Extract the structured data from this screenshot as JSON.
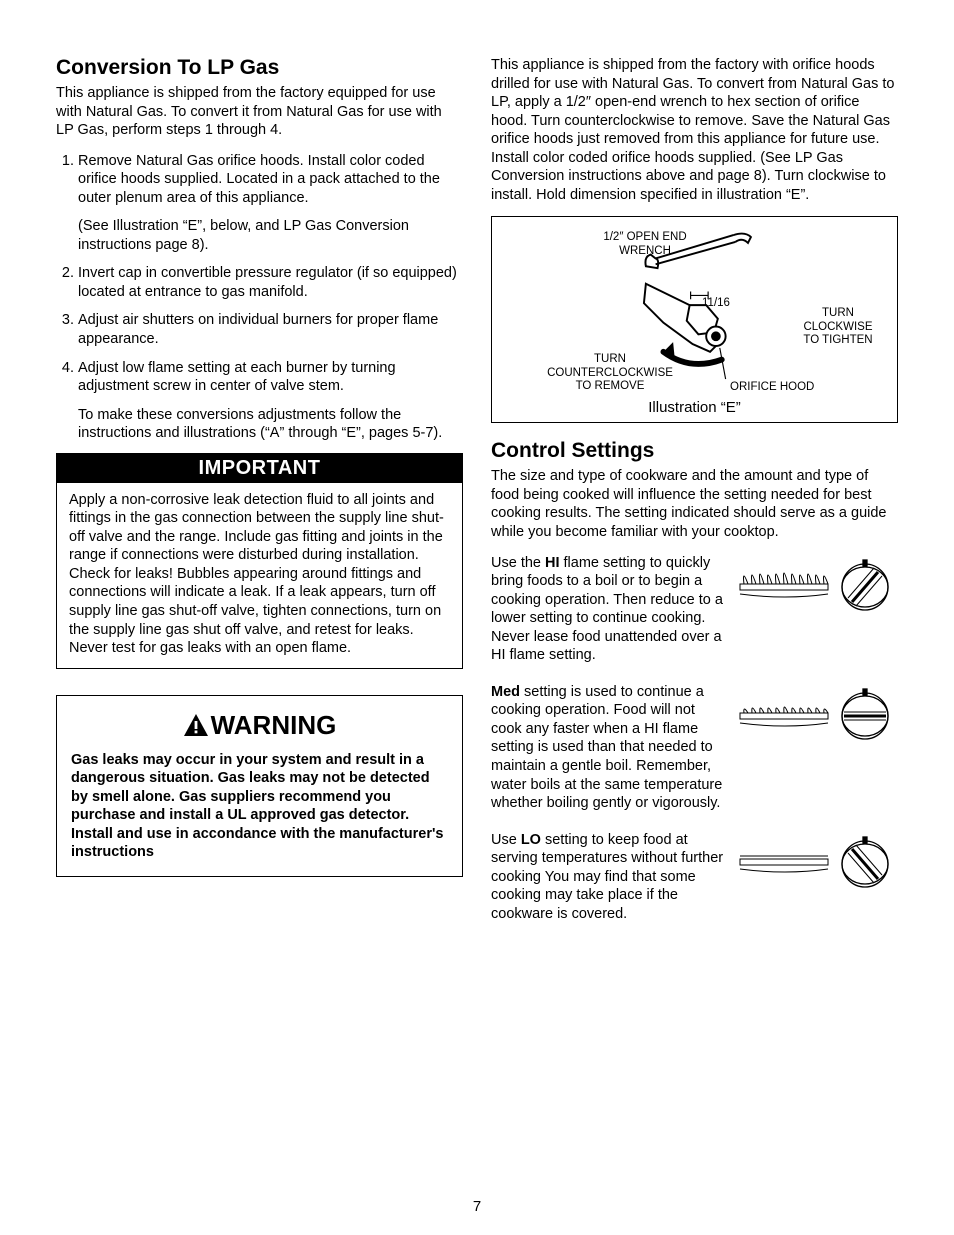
{
  "page_number": "7",
  "left": {
    "h1": "Conversion To LP Gas",
    "intro": "This appliance is shipped from the factory equipped for use with Natural Gas. To convert it from Natural Gas for use with LP Gas, perform steps 1 through 4.",
    "steps": [
      "Remove Natural Gas orifice hoods. Install color coded orifice hoods supplied. Located in a pack attached to the outer plenum area of this appliance.",
      "Invert cap in convertible pressure regulator (if so equipped) located at entrance to gas manifold.",
      "Adjust air shutters on individual burners for proper flame appearance.",
      "Adjust low flame setting at each burner by turning adjustment screw in center of valve stem."
    ],
    "step1_note": "(See Illustration “E”, below, and LP Gas Conversion instructions page 8).",
    "step4_note": "To make these conversions adjustments follow the instructions and illustrations (“A” through “E”, pages 5-7).",
    "important": {
      "title": "IMPORTANT",
      "body": "Apply a non-corrosive leak detection fluid to all joints and fittings in the gas connection between the supply line shut-off valve and the range. Include gas fitting and joints in the range if connections were disturbed during installation. Check for leaks! Bubbles appearing around fittings and connections will indicate a leak. If a leak appears, turn off supply line gas shut-off valve, tighten connections, turn on the supply line gas shut off valve, and retest for leaks. Never test for gas leaks with an open flame."
    },
    "warning": {
      "title": "WARNING",
      "body": "Gas leaks may occur in your system and result in a dangerous  situation. Gas leaks may not be detected by smell alone. Gas suppliers recommend you purchase and install a UL approved gas detector. Install and use in accondance with the manufacturer's instructions"
    }
  },
  "right": {
    "intro": "This appliance is shipped from the factory with orifice hoods drilled for use with Natural Gas. To convert from Natural Gas to LP, apply a 1/2″ open-end wrench to hex section of orifice hood. Turn counterclockwise to remove. Save the Natural Gas orifice hoods just removed from this appliance for future use. Install color coded orifice hoods supplied. (See LP Gas Conversion instructions above and page 8). Turn clockwise to install. Hold dimension specified in illustration “E”.",
    "illus": {
      "label_wrench": "1/2″ OPEN END\nWRENCH",
      "label_dim": "11/16",
      "label_ccw": "TURN\nCOUNTERCLOCKWISE\nTO REMOVE",
      "label_cw": "TURN\nCLOCKWISE\nTO TIGHTEN",
      "label_hood": "ORIFICE HOOD",
      "caption": "Illustration “E”"
    },
    "h2": "Control Settings",
    "cs_intro": "The size and type of cookware and the amount and type of food being cooked will influence the setting needed for best cooking results. The setting indicated should serve as a guide while you become familiar with your cooktop.",
    "hi": {
      "prefix": "Use the ",
      "bold": "HI",
      "rest": " flame setting to quickly bring foods to a boil or to begin a cooking operation. Then reduce to a lower setting to continue cooking. Never lease food unattended over a HI flame setting."
    },
    "med": {
      "bold": "Med",
      "rest": " setting is used to continue a cooking operation. Food will not cook any faster when a HI flame setting is used than that needed to maintain a gentle boil. Remember, water boils at the same temperature whether boiling gently or vigorously."
    },
    "lo": {
      "prefix": "Use ",
      "bold": "LO",
      "rest": " setting to keep food at serving temperatures without further cooking You may find that some cooking may take place if the cookware is covered."
    }
  }
}
